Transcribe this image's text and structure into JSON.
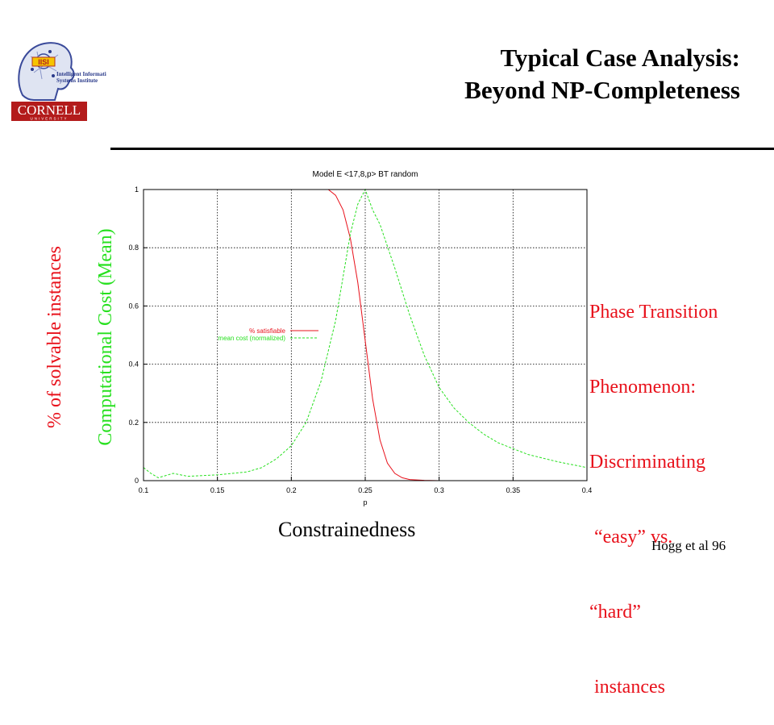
{
  "logo": {
    "badge_text": "IISI",
    "institute_lines": [
      "Intelligent Information",
      "Systems Institute"
    ],
    "university_name": "CORNELL",
    "university_sub": "UNIVERSITY"
  },
  "title": {
    "line1": "Typical Case Analysis:",
    "line2": "Beyond NP-Completeness"
  },
  "ylabel_left": "% of solvable instances",
  "ylabel_right": "Computational Cost (Mean)",
  "xlabel_big": "Constrainedness",
  "annotation": {
    "lines": [
      "Phase Transition",
      "Phenomenon:",
      "Discriminating",
      " “easy” vs.",
      "“hard”",
      " instances"
    ]
  },
  "citation": "Hogg et al 96",
  "colors": {
    "red": "#e8111b",
    "green": "#27e01f",
    "text": "#000000"
  },
  "chart_data": {
    "type": "line",
    "title": "Model E <17,8,p> BT random",
    "xlabel": "p",
    "ylabel": "",
    "xlim": [
      0.1,
      0.4
    ],
    "ylim": [
      0,
      1
    ],
    "xticks": [
      "0.1",
      "0.15",
      "0.2",
      "0.25",
      "0.3",
      "0.35",
      "0.4"
    ],
    "yticks": [
      "0",
      "0.2",
      "0.4",
      "0.6",
      "0.8",
      "1"
    ],
    "grid": true,
    "legend_position": "center-left",
    "series": [
      {
        "name": "% satisfiable",
        "color": "#e8111b",
        "dash": "solid",
        "x": [
          0.1,
          0.225,
          0.23,
          0.235,
          0.24,
          0.245,
          0.25,
          0.255,
          0.26,
          0.265,
          0.27,
          0.275,
          0.28,
          0.29,
          0.3,
          0.4
        ],
        "y": [
          1.0,
          1.0,
          0.98,
          0.93,
          0.83,
          0.68,
          0.48,
          0.28,
          0.14,
          0.06,
          0.025,
          0.01,
          0.004,
          0.001,
          0.0,
          0.0
        ]
      },
      {
        "name": "mean cost (normalized)",
        "color": "#27e01f",
        "dash": "dashed",
        "x": [
          0.1,
          0.105,
          0.11,
          0.12,
          0.13,
          0.15,
          0.17,
          0.18,
          0.19,
          0.2,
          0.21,
          0.22,
          0.23,
          0.235,
          0.24,
          0.245,
          0.25,
          0.255,
          0.26,
          0.27,
          0.28,
          0.29,
          0.3,
          0.31,
          0.32,
          0.33,
          0.34,
          0.35,
          0.36,
          0.38,
          0.4
        ],
        "y": [
          0.045,
          0.025,
          0.01,
          0.025,
          0.015,
          0.02,
          0.03,
          0.045,
          0.075,
          0.12,
          0.2,
          0.34,
          0.55,
          0.7,
          0.85,
          0.95,
          1.0,
          0.93,
          0.88,
          0.73,
          0.57,
          0.43,
          0.32,
          0.25,
          0.2,
          0.16,
          0.13,
          0.11,
          0.09,
          0.065,
          0.045
        ]
      }
    ]
  }
}
